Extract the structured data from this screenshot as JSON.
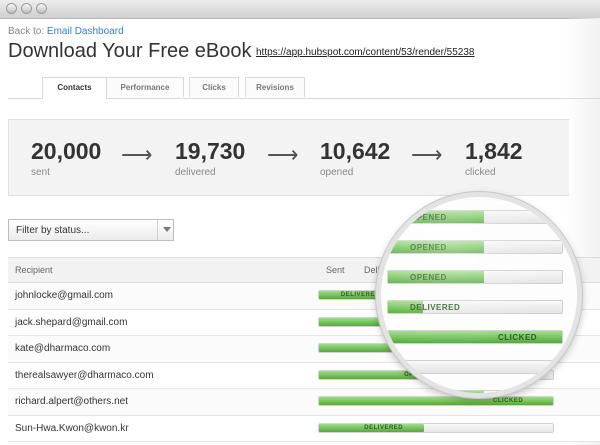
{
  "window": {
    "title": ""
  },
  "nav": {
    "back_prefix": "Back to:",
    "back_link": "Email Dashboard"
  },
  "page": {
    "title": "Download Your Free eBook",
    "url": "https://app.hubspot.com/content/53/render/55238"
  },
  "tabs": [
    {
      "label": "Contacts",
      "active": true
    },
    {
      "label": "Performance",
      "active": false
    },
    {
      "label": "Clicks",
      "active": false
    },
    {
      "label": "Revisions",
      "active": false
    }
  ],
  "stats": [
    {
      "value": "20,000",
      "label": "sent"
    },
    {
      "value": "19,730",
      "label": "delivered"
    },
    {
      "value": "10,642",
      "label": "opened"
    },
    {
      "value": "1,842",
      "label": "clicked"
    }
  ],
  "arrow_glyph": "⟶",
  "filter": {
    "placeholder": "Filter by status..."
  },
  "table": {
    "columns": [
      "Recipient",
      "Sent",
      "Delivered"
    ],
    "rows": [
      {
        "email": "johnlocke@gmail.com",
        "status": "DELIVERED",
        "progress": 0.35
      },
      {
        "email": "jack.shepard@gmail.com",
        "status": "CLICKED",
        "progress": 1.0
      },
      {
        "email": "kate@dharmaco.com",
        "status": "",
        "progress": 0.38
      },
      {
        "email": "therealsawyer@dharmaco.com",
        "status": "OPENED",
        "progress": 0.62
      },
      {
        "email": "richard.alpert@others.net",
        "status": "CLICKED",
        "progress": 1.0
      },
      {
        "email": "Sun-Hwa.Kwon@kwon.kr",
        "status": "DELIVERED",
        "progress": 0.45
      }
    ]
  },
  "magnifier": {
    "rows": [
      {
        "status": "OPENED",
        "progress": 0.55
      },
      {
        "status": "OPENED",
        "progress": 0.55
      },
      {
        "status": "OPENED",
        "progress": 0.55
      },
      {
        "status": "DELIVERED",
        "progress": 0.2
      },
      {
        "status": "CLICKED",
        "progress": 1.0
      },
      {
        "status": "",
        "progress": 0.1
      },
      {
        "status": "OPENED",
        "progress": 0.55
      }
    ]
  },
  "colors": {
    "accent_link": "#3a7ec8",
    "bar_green": "#55a93c"
  }
}
